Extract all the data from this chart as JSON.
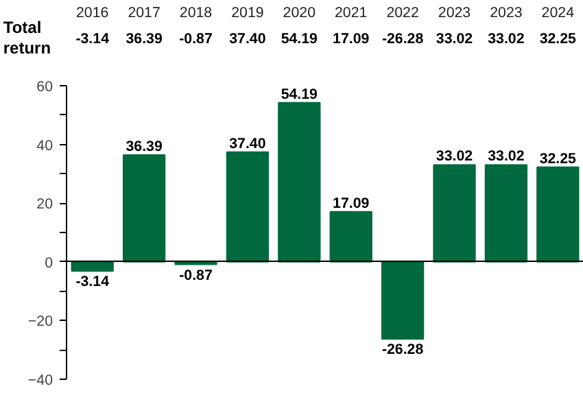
{
  "chart_data": {
    "type": "bar",
    "categories": [
      "2016",
      "2017",
      "2018",
      "2019",
      "2020",
      "2021",
      "2022",
      "2023",
      "2023",
      "2024"
    ],
    "values": [
      -3.14,
      36.39,
      -0.87,
      37.4,
      54.19,
      17.09,
      -26.28,
      33.02,
      33.02,
      32.25
    ],
    "color": "#00693e",
    "ylim": [
      -40,
      60
    ],
    "yticks": [
      -40,
      {
        "value": -30,
        "label": null
      },
      -20,
      {
        "value": -10,
        "label": null
      },
      0,
      {
        "value": 10,
        "label": null
      },
      20,
      {
        "value": 30,
        "label": null
      },
      40,
      {
        "value": 50,
        "label": null
      },
      60
    ],
    "value_labels": [
      "-3.14",
      "36.39",
      "-0.87",
      "37.40",
      "54.19",
      "17.09",
      "-26.28",
      "33.02",
      "33.02",
      "32.25"
    ],
    "annotations": [
      "Total return"
    ]
  }
}
